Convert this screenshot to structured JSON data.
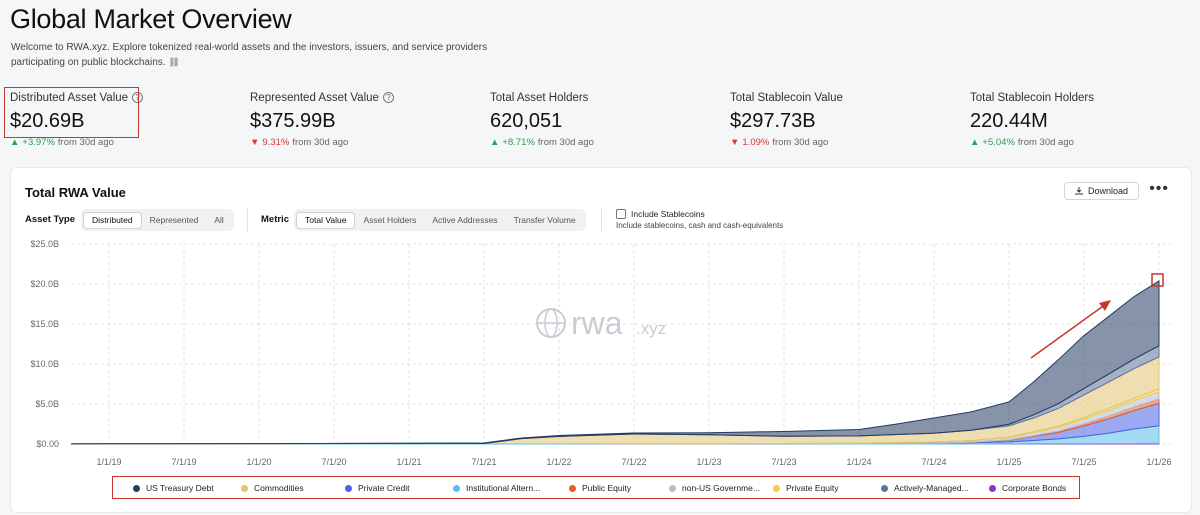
{
  "header": {
    "title": "Global Market Overview",
    "description": "Welcome to RWA.xyz. Explore tokenized real-world assets and the investors, issuers, and service providers participating on public blockchains.",
    "link_icon": "link-icon"
  },
  "stats": [
    {
      "label": "Distributed Asset Value",
      "help": true,
      "value": "$20.69B",
      "arrow": "▲",
      "change": "+3.97%",
      "suffix": "from 30d ago",
      "direction": "up"
    },
    {
      "label": "Represented Asset Value",
      "help": true,
      "value": "$375.99B",
      "arrow": "▼",
      "change": "9.31%",
      "suffix": "from 30d ago",
      "direction": "down"
    },
    {
      "label": "Total Asset Holders",
      "help": false,
      "value": "620,051",
      "arrow": "▲",
      "change": "+8.71%",
      "suffix": "from 30d ago",
      "direction": "up"
    },
    {
      "label": "Total Stablecoin Value",
      "help": false,
      "value": "$297.73B",
      "arrow": "▼",
      "change": "1.09%",
      "suffix": "from 30d ago",
      "direction": "down"
    },
    {
      "label": "Total Stablecoin Holders",
      "help": false,
      "value": "220.44M",
      "arrow": "▲",
      "change": "+5.04%",
      "suffix": "from 30d ago",
      "direction": "up"
    }
  ],
  "panel": {
    "title": "Total RWA Value",
    "download_label": "Download",
    "more_icon": "more-horizontal-icon",
    "asset_type_label": "Asset Type",
    "asset_type_options": [
      "Distributed",
      "Represented",
      "All"
    ],
    "asset_type_selected": "Distributed",
    "metric_label": "Metric",
    "metric_options": [
      "Total Value",
      "Asset Holders",
      "Active Addresses",
      "Transfer Volume"
    ],
    "metric_selected": "Total Value",
    "stablecoin_label": "Include Stablecoins",
    "stablecoin_checked": false,
    "stablecoin_sub": "Include stablecoins, cash and cash-equivalents"
  },
  "watermark": {
    "main": "rwa",
    "suffix": ".xyz"
  },
  "colors": {
    "accent_red": "#c8372d",
    "up": "#2e9e4f",
    "down": "#d93a3a"
  },
  "chart_data": {
    "type": "area",
    "stacked": true,
    "x_ticks": [
      "1/1/19",
      "7/1/19",
      "1/1/20",
      "7/1/20",
      "1/1/21",
      "7/1/21",
      "1/1/22",
      "7/1/22",
      "1/1/23",
      "7/1/23",
      "1/1/24",
      "7/1/24",
      "1/1/25",
      "7/1/25",
      "1/1/26"
    ],
    "y_ticks": [
      "$0.00",
      "$5.0B",
      "$10.0B",
      "$15.0B",
      "$20.0B",
      "$25.0B"
    ],
    "ylim": [
      0,
      25
    ],
    "y_unit": "B",
    "grid": true,
    "legend_position": "bottom",
    "x": [
      "2018-10-01",
      "2019-01-01",
      "2020-01-01",
      "2021-01-01",
      "2021-05-01",
      "2021-07-01",
      "2021-10-01",
      "2022-01-01",
      "2022-07-01",
      "2023-01-01",
      "2023-07-01",
      "2024-01-01",
      "2024-04-01",
      "2024-07-01",
      "2024-10-01",
      "2025-01-01",
      "2025-03-01",
      "2025-05-01",
      "2025-07-01",
      "2025-09-01",
      "2025-11-01",
      "2026-01-01"
    ],
    "series": [
      {
        "name": "Corporate Bonds",
        "color": "#8b36c9",
        "values": [
          0,
          0,
          0,
          0,
          0,
          0,
          0,
          0,
          0,
          0,
          0,
          0,
          0,
          0,
          0,
          0.02,
          0.03,
          0.04,
          0.05,
          0.06,
          0.07,
          0.08
        ]
      },
      {
        "name": "Institutional Altern...",
        "color": "#58c0e8",
        "values": [
          0.02,
          0.03,
          0.05,
          0.08,
          0.08,
          0.07,
          0.07,
          0.06,
          0.05,
          0.05,
          0.05,
          0.06,
          0.08,
          0.1,
          0.15,
          0.25,
          0.4,
          0.6,
          0.9,
          1.3,
          1.8,
          2.2
        ]
      },
      {
        "name": "Private Credit",
        "color": "#4a63e3",
        "values": [
          0,
          0,
          0,
          0,
          0,
          0,
          0,
          0,
          0,
          0,
          0,
          0,
          0,
          0,
          0.05,
          0.2,
          0.5,
          0.8,
          1.3,
          1.8,
          2.3,
          2.8
        ]
      },
      {
        "name": "Public Equity",
        "color": "#e35f2e",
        "values": [
          0,
          0,
          0,
          0,
          0,
          0,
          0,
          0,
          0,
          0,
          0,
          0,
          0,
          0,
          0.02,
          0.05,
          0.1,
          0.15,
          0.25,
          0.35,
          0.45,
          0.55
        ]
      },
      {
        "name": "non-US Governme...",
        "color": "#b6bccb",
        "values": [
          0,
          0,
          0,
          0,
          0,
          0,
          0,
          0,
          0,
          0,
          0.02,
          0.05,
          0.1,
          0.15,
          0.2,
          0.3,
          0.4,
          0.5,
          0.6,
          0.7,
          0.8,
          0.9
        ]
      },
      {
        "name": "Private Equity",
        "color": "#f2cf4a",
        "values": [
          0,
          0,
          0,
          0,
          0,
          0,
          0,
          0,
          0,
          0,
          0,
          0,
          0,
          0,
          0,
          0.05,
          0.1,
          0.15,
          0.2,
          0.25,
          0.3,
          0.35
        ]
      },
      {
        "name": "Commodities",
        "color": "#e2c36e",
        "values": [
          0,
          0,
          0,
          0,
          0,
          0,
          0.6,
          0.9,
          1.2,
          1.1,
          0.9,
          0.9,
          1.0,
          1.1,
          1.3,
          1.4,
          1.7,
          2.2,
          2.8,
          3.3,
          3.7,
          4.0
        ]
      },
      {
        "name": "Actively-Managed...",
        "color": "#5c739e",
        "values": [
          0,
          0,
          0,
          0,
          0,
          0,
          0,
          0,
          0,
          0,
          0,
          0,
          0,
          0,
          0,
          0.2,
          0.4,
          0.6,
          0.8,
          1.0,
          1.2,
          1.4
        ]
      },
      {
        "name": "US Treasury Debt",
        "color": "#243b62",
        "values": [
          0,
          0,
          0,
          0.01,
          0.03,
          0.05,
          0.08,
          0.1,
          0.12,
          0.25,
          0.6,
          0.8,
          1.3,
          1.9,
          2.3,
          2.8,
          4.1,
          5.5,
          6.6,
          7.2,
          7.8,
          8.1
        ]
      }
    ],
    "legend": [
      "US Treasury Debt",
      "Commodities",
      "Private Credit",
      "Institutional Altern...",
      "Public Equity",
      "non-US Governme...",
      "Private Equity",
      "Actively-Managed...",
      "Corporate Bonds"
    ]
  }
}
